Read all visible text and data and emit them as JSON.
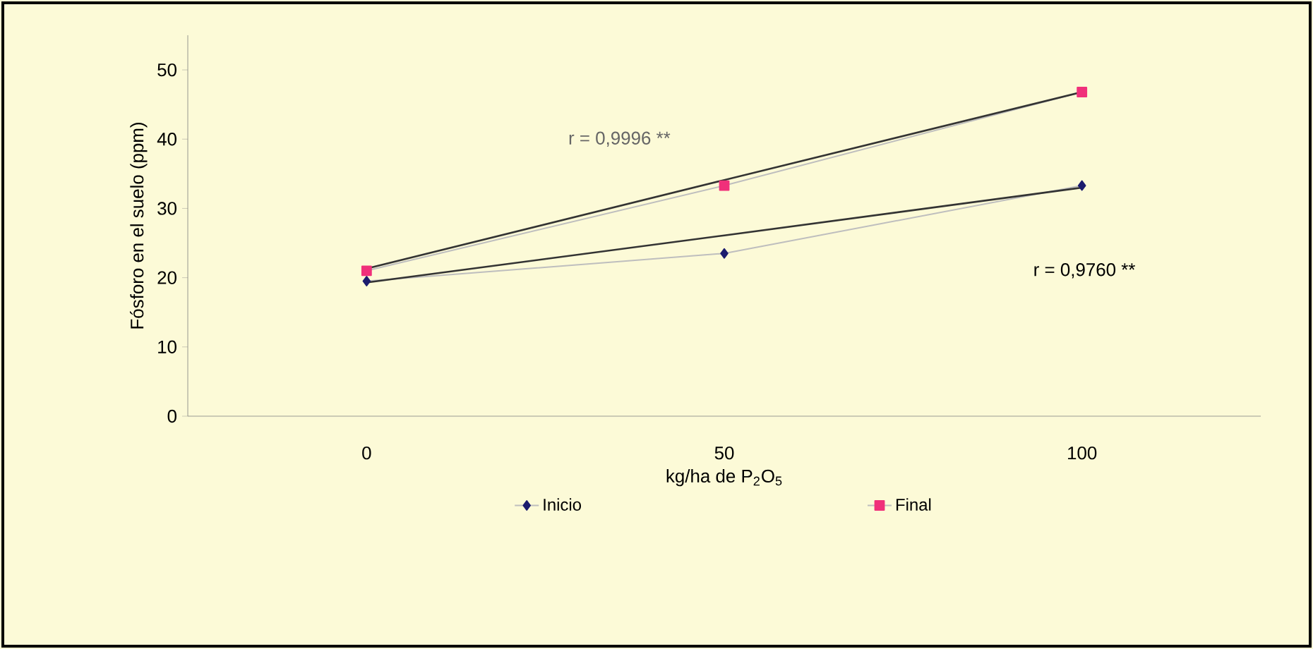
{
  "chart_data": {
    "type": "line",
    "categories": [
      "0",
      "50",
      "100"
    ],
    "xlabel": "kg/ha de P$_{2}$O$_{5}$",
    "ylabel": "Fósforo en el suelo (ppm)",
    "ylim": [
      0,
      55
    ],
    "yticks": [
      0,
      10,
      20,
      30,
      40,
      50
    ],
    "series": [
      {
        "name": "Inicio",
        "color": "#1c1c6e",
        "marker": "diamond",
        "values": [
          19.5,
          23.5,
          33.3
        ]
      },
      {
        "name": "Final",
        "color": "#f0307a",
        "marker": "square",
        "values": [
          21,
          33.3,
          46.8
        ]
      },
      {
        "color": "#333333",
        "marker": "none",
        "values": [
          19.3,
          26.1,
          33.0
        ]
      },
      {
        "color": "#333333",
        "marker": "none",
        "values": [
          21.3,
          34.1,
          46.8
        ]
      }
    ],
    "annotations": [
      "r = 0,9996 **",
      "r = 0,9760 **"
    ],
    "legend": "bottom",
    "grid": false
  }
}
